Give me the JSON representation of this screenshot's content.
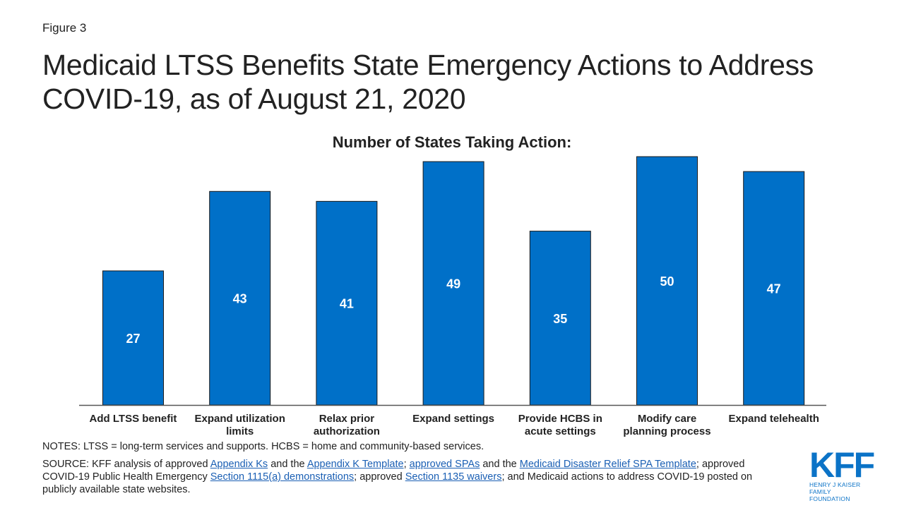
{
  "figure_label": "Figure 3",
  "title": "Medicaid LTSS Benefits State Emergency Actions to Address COVID-19, as of August 21, 2020",
  "chart_data": {
    "type": "bar",
    "title": "Number of States Taking Action:",
    "categories": [
      [
        "Add LTSS benefit"
      ],
      [
        "Expand utilization",
        "limits"
      ],
      [
        "Relax prior",
        "authorization"
      ],
      [
        "Expand settings"
      ],
      [
        "Provide HCBS in",
        "acute settings"
      ],
      [
        "Modify care",
        "planning process"
      ],
      [
        "Expand telehealth"
      ]
    ],
    "values": [
      27,
      43,
      41,
      49,
      35,
      50,
      47
    ],
    "ylim": [
      0,
      50
    ],
    "grid": false,
    "bar_color": "#0070c8",
    "label_color": "#ffffff"
  },
  "notes": "NOTES: LTSS = long-term services and supports. HCBS = home and community-based services.",
  "source": {
    "parts": [
      {
        "text": "SOURCE: KFF analysis of approved "
      },
      {
        "text": "Appendix Ks",
        "link": true
      },
      {
        "text": " and the "
      },
      {
        "text": "Appendix K Template",
        "link": true
      },
      {
        "text": "; "
      },
      {
        "text": "approved SPAs",
        "link": true
      },
      {
        "text": " and the "
      },
      {
        "text": "Medicaid Disaster Relief SPA Template",
        "link": true
      },
      {
        "text": "; approved COVID-19 Public Health Emergency "
      },
      {
        "text": "Section 1115(a) demonstrations",
        "link": true
      },
      {
        "text": "; approved "
      },
      {
        "text": "Section 1135 waivers",
        "link": true
      },
      {
        "text": "; and Medicaid actions to address COVID-19 posted on publicly available state websites."
      }
    ]
  },
  "logo": {
    "mark": "KFF",
    "line1": "HENRY J KAISER",
    "line2": "FAMILY FOUNDATION",
    "color": "#0b73c7"
  }
}
